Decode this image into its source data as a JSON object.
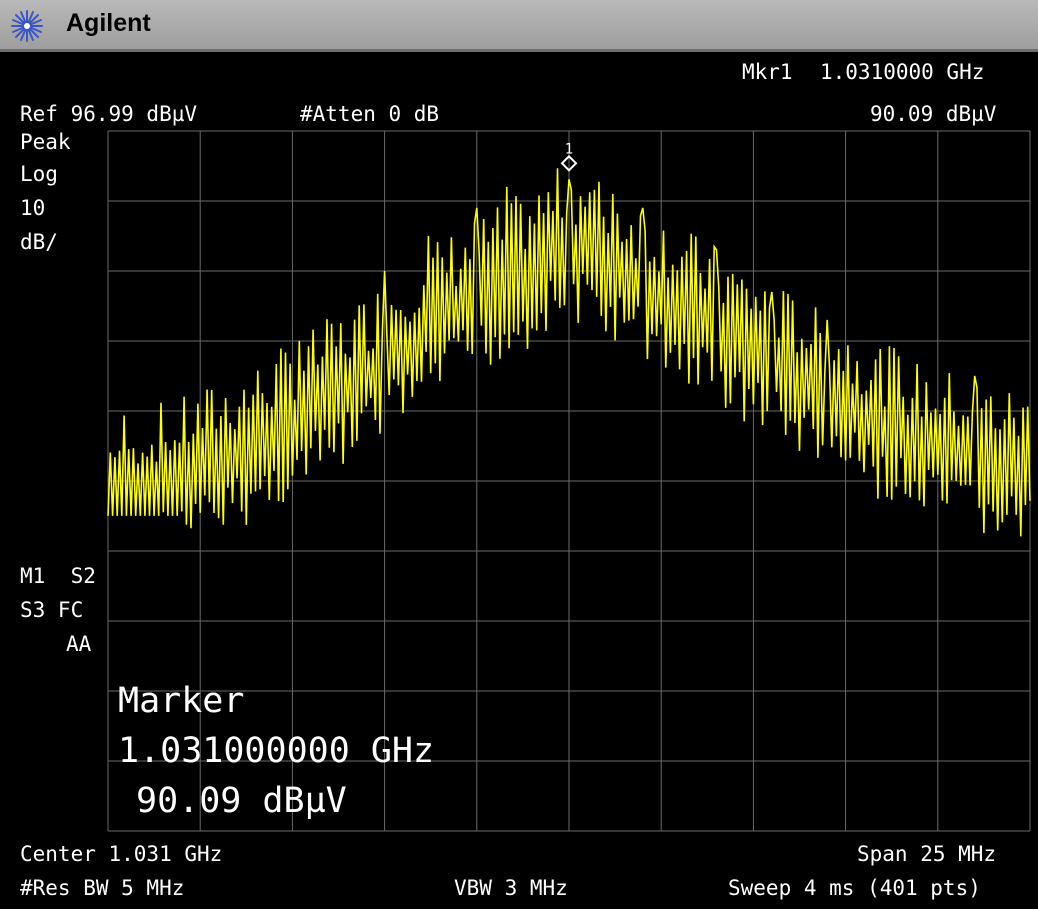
{
  "app": {
    "brand": "Agilent",
    "logo_icon": "agilent-spark-icon"
  },
  "top": {
    "marker_label": "Mkr1",
    "marker_freq": "1.0310000 GHz",
    "marker_amp": "90.09 dBµV",
    "ref_level": "Ref 96.99 dBµV",
    "attenuation": "#Atten 0 dB"
  },
  "left_panel": {
    "detector": "Peak",
    "scale_type": "Log",
    "scale_value": "10",
    "scale_unit": "dB/",
    "flags_line1": "M1  S2",
    "flags_line2": "S3 FC",
    "flags_line3": "AA"
  },
  "marker_readout": {
    "title": "Marker",
    "freq": "1.031000000 GHz",
    "amp": "90.09 dBµV"
  },
  "marker_tag": "1",
  "bottom": {
    "center": "Center 1.031 GHz",
    "span": "Span 25 MHz",
    "rbw": "#Res BW 5 MHz",
    "vbw": "VBW 3 MHz",
    "sweep": "Sweep 4 ms (401 pts)"
  },
  "colors": {
    "trace": "#ffff00",
    "grid": "#6a6a6a",
    "text": "#ffffff",
    "background": "#000000",
    "titlebar": "#a8a8a8"
  },
  "chart_data": {
    "type": "line",
    "title": "",
    "x_unit": "GHz",
    "y_unit": "dBµV",
    "xlim": [
      1.0185,
      1.0435
    ],
    "ylim": [
      -3.01,
      96.99
    ],
    "ref_level": 96.99,
    "scale_db_per_div": 10,
    "divisions": 10,
    "grid": true,
    "points": 401,
    "marker": {
      "label": "1",
      "x": 1.031,
      "y": 90.09
    },
    "envelope": [
      {
        "x": 1.0185,
        "y": 48
      },
      {
        "x": 1.0205,
        "y": 50
      },
      {
        "x": 1.0225,
        "y": 55
      },
      {
        "x": 1.025,
        "y": 63
      },
      {
        "x": 1.0275,
        "y": 73
      },
      {
        "x": 1.03,
        "y": 80
      },
      {
        "x": 1.031,
        "y": 84
      },
      {
        "x": 1.033,
        "y": 78
      },
      {
        "x": 1.0355,
        "y": 70
      },
      {
        "x": 1.038,
        "y": 62
      },
      {
        "x": 1.0405,
        "y": 55
      },
      {
        "x": 1.0435,
        "y": 51
      }
    ],
    "peaks": [
      {
        "x": 1.0237,
        "y": 67
      },
      {
        "x": 1.026,
        "y": 77
      },
      {
        "x": 1.0272,
        "y": 82
      },
      {
        "x": 1.0285,
        "y": 86
      },
      {
        "x": 1.0293,
        "y": 89
      },
      {
        "x": 1.031,
        "y": 90.09
      },
      {
        "x": 1.0322,
        "y": 88
      },
      {
        "x": 1.033,
        "y": 86
      },
      {
        "x": 1.035,
        "y": 80
      },
      {
        "x": 1.0365,
        "y": 74
      },
      {
        "x": 1.038,
        "y": 70
      },
      {
        "x": 1.0398,
        "y": 66
      },
      {
        "x": 1.042,
        "y": 62
      }
    ],
    "noise_floor": 42
  }
}
